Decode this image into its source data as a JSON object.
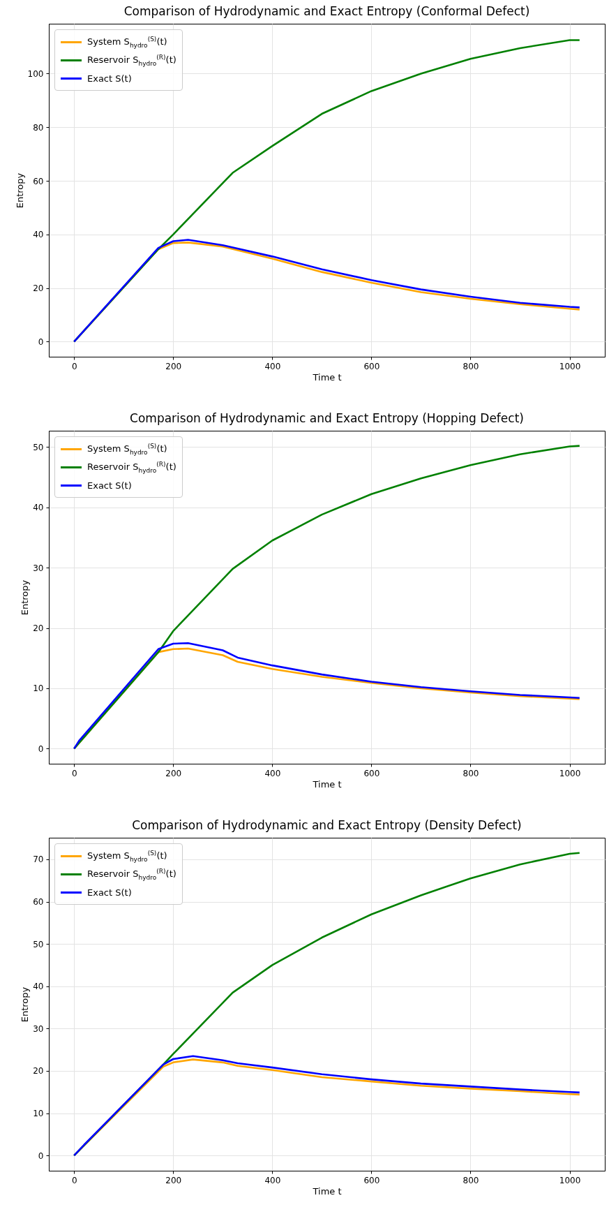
{
  "chart_data": [
    {
      "type": "line",
      "title": "Comparison of Hydrodynamic and Exact Entropy (Conformal Defect)",
      "xlabel": "Time t",
      "ylabel": "Entropy",
      "xlim": [
        -51,
        1071
      ],
      "ylim": [
        -5.6,
        118.6
      ],
      "xticks": [
        0,
        200,
        400,
        600,
        800,
        1000
      ],
      "yticks": [
        0,
        20,
        40,
        60,
        80,
        100
      ],
      "grid": true,
      "legend": "top left",
      "series": [
        {
          "name": "System S$_{hydro}$$^{(S)}$(t)",
          "color": "#ffa500",
          "x": [
            0,
            170,
            200,
            230,
            300,
            400,
            500,
            600,
            700,
            800,
            900,
            1000,
            1020
          ],
          "values": [
            0,
            34.5,
            36.8,
            37,
            35.5,
            31,
            26,
            22,
            18.5,
            16,
            14,
            12.3,
            12
          ]
        },
        {
          "name": "Reservoir S$_{hydro}$$^{(R)}$(t)",
          "color": "#008000",
          "x": [
            0,
            170,
            200,
            320,
            400,
            500,
            600,
            700,
            800,
            900,
            1000,
            1020
          ],
          "values": [
            0,
            34.5,
            40,
            63,
            73,
            85,
            93.5,
            100,
            105.5,
            109.5,
            112.5,
            112.5
          ]
        },
        {
          "name": "Exact S(t)",
          "color": "#0000ff",
          "x": [
            0,
            170,
            200,
            230,
            300,
            400,
            500,
            600,
            700,
            800,
            900,
            1000,
            1020
          ],
          "values": [
            0,
            35,
            37.5,
            38,
            36,
            31.8,
            27,
            23,
            19.5,
            16.8,
            14.5,
            13,
            12.8
          ]
        }
      ]
    },
    {
      "type": "line",
      "title": "Comparison of Hydrodynamic and Exact Entropy (Hopping Defect)",
      "xlabel": "Time t",
      "ylabel": "Entropy",
      "xlim": [
        -51,
        1071
      ],
      "ylim": [
        -2.5,
        52.7
      ],
      "xticks": [
        0,
        200,
        400,
        600,
        800,
        1000
      ],
      "yticks": [
        0,
        10,
        20,
        30,
        40,
        50
      ],
      "grid": true,
      "legend": "top left",
      "series": [
        {
          "name": "System S$_{hydro}$$^{(S)}$(t)",
          "color": "#ffa500",
          "x": [
            0,
            170,
            200,
            230,
            300,
            330,
            400,
            500,
            600,
            700,
            800,
            900,
            1000,
            1020
          ],
          "values": [
            0,
            16,
            16.5,
            16.6,
            15.5,
            14.4,
            13.2,
            11.9,
            10.9,
            10,
            9.3,
            8.7,
            8.3,
            8.2
          ]
        },
        {
          "name": "Reservoir S$_{hydro}$$^{(R)}$(t)",
          "color": "#008000",
          "x": [
            0,
            170,
            200,
            320,
            400,
            500,
            600,
            700,
            800,
            900,
            1000,
            1020
          ],
          "values": [
            0,
            16,
            19.5,
            29.8,
            34.5,
            38.8,
            42.2,
            44.8,
            47,
            48.8,
            50.1,
            50.2
          ]
        },
        {
          "name": "Exact S(t)",
          "color": "#0000ff",
          "x": [
            0,
            10,
            170,
            200,
            230,
            300,
            330,
            400,
            500,
            600,
            700,
            800,
            900,
            1000,
            1020
          ],
          "values": [
            0,
            1.3,
            16.5,
            17.4,
            17.5,
            16.3,
            15.1,
            13.8,
            12.3,
            11.1,
            10.2,
            9.5,
            8.9,
            8.5,
            8.4
          ]
        }
      ]
    },
    {
      "type": "line",
      "title": "Comparison of Hydrodynamic and Exact Entropy (Density Defect)",
      "xlabel": "Time t",
      "ylabel": "Entropy",
      "xlim": [
        -51,
        1071
      ],
      "ylim": [
        -3.6,
        75.1
      ],
      "xticks": [
        0,
        200,
        400,
        600,
        800,
        1000
      ],
      "yticks": [
        0,
        10,
        20,
        30,
        40,
        50,
        60,
        70
      ],
      "grid": true,
      "legend": "top left",
      "series": [
        {
          "name": "System S$_{hydro}$$^{(S)}$(t)",
          "color": "#ffa500",
          "x": [
            0,
            180,
            200,
            240,
            300,
            330,
            400,
            500,
            600,
            700,
            800,
            900,
            1000,
            1020
          ],
          "values": [
            0,
            21,
            22,
            22.7,
            22,
            21.2,
            20.2,
            18.5,
            17.5,
            16.5,
            15.8,
            15.2,
            14.5,
            14.4
          ]
        },
        {
          "name": "Reservoir S$_{hydro}$$^{(R)}$(t)",
          "color": "#008000",
          "x": [
            0,
            180,
            200,
            320,
            400,
            500,
            600,
            700,
            800,
            900,
            1000,
            1020
          ],
          "values": [
            0,
            21.5,
            24,
            38.5,
            45,
            51.5,
            57,
            61.5,
            65.5,
            68.8,
            71.3,
            71.5
          ]
        },
        {
          "name": "Exact S(t)",
          "color": "#0000ff",
          "x": [
            0,
            20,
            180,
            200,
            240,
            300,
            330,
            400,
            500,
            600,
            700,
            800,
            900,
            1000,
            1020
          ],
          "values": [
            0,
            2.5,
            21.5,
            22.8,
            23.5,
            22.5,
            21.8,
            20.8,
            19.2,
            18,
            17,
            16.3,
            15.6,
            15,
            14.9
          ]
        }
      ]
    }
  ]
}
